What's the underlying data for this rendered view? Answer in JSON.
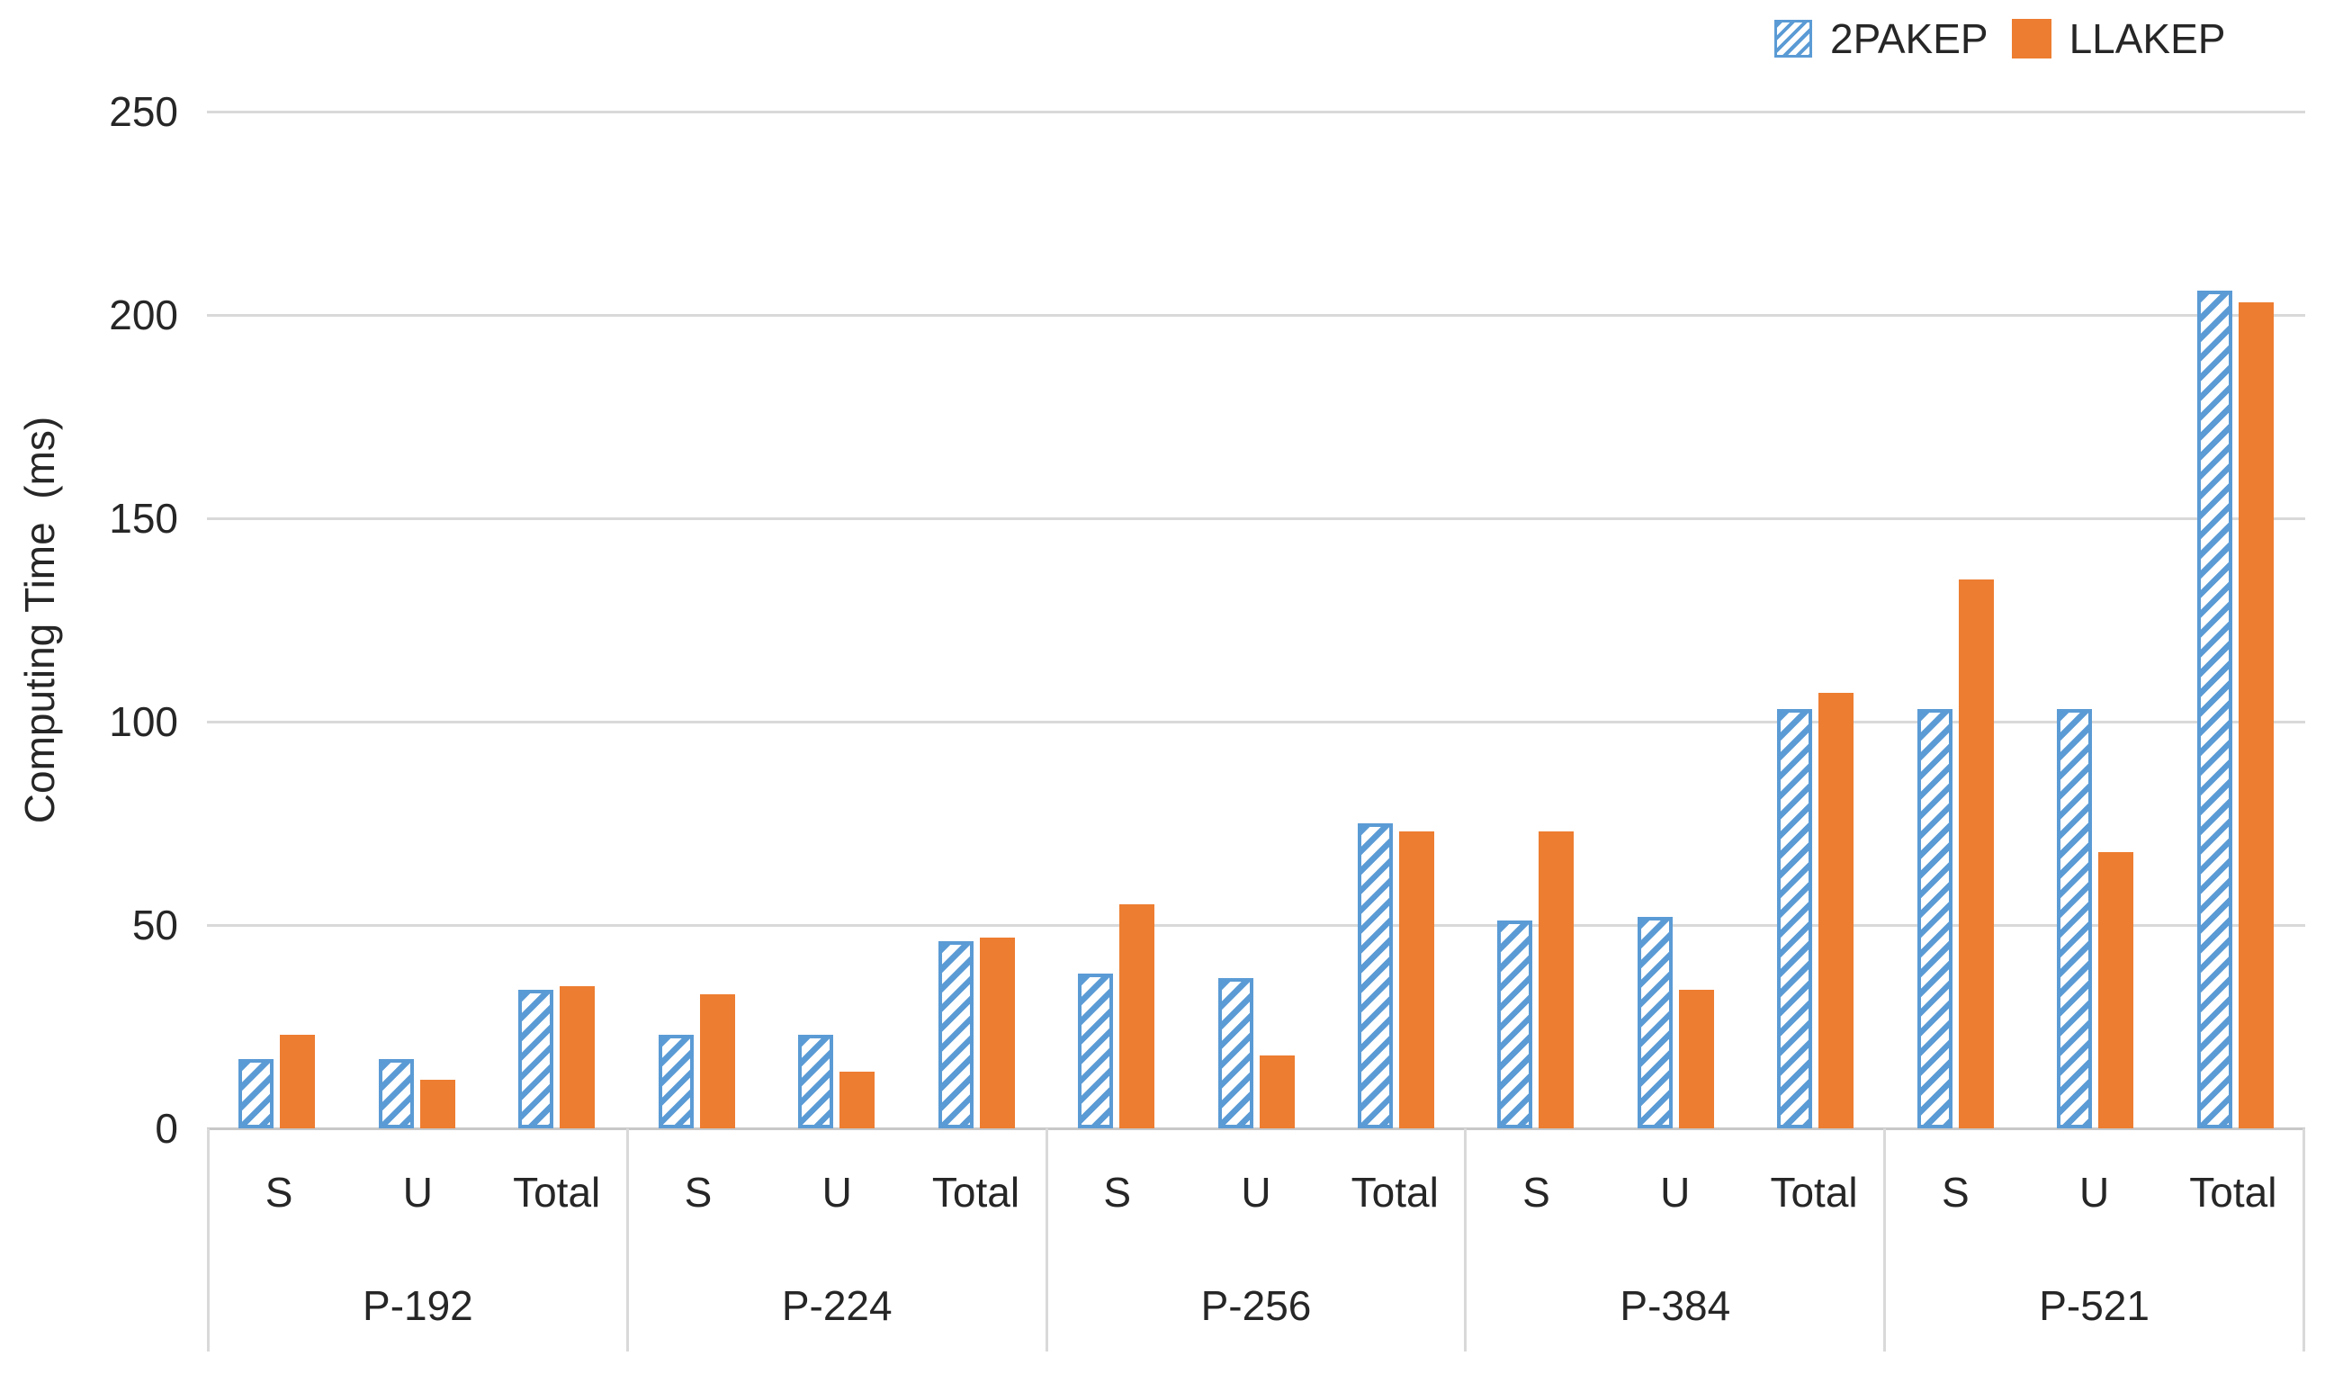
{
  "chart_data": {
    "type": "bar",
    "title": "",
    "ylabel": "Computing Time  (ms)",
    "xlabel": "",
    "ylim": [
      0,
      250
    ],
    "yticks": [
      0,
      50,
      100,
      150,
      200,
      250
    ],
    "grid": true,
    "legend_position": "top-right",
    "groups": [
      "P-192",
      "P-224",
      "P-256",
      "P-384",
      "P-521"
    ],
    "subcategories": [
      "S",
      "U",
      "Total"
    ],
    "series": [
      {
        "name": "2PAKEP",
        "color": "#5B9BD5",
        "pattern": "diagonal-hatch",
        "values": [
          [
            17,
            17,
            34
          ],
          [
            23,
            23,
            46
          ],
          [
            38,
            37,
            75
          ],
          [
            51,
            52,
            103
          ],
          [
            103,
            103,
            206
          ]
        ]
      },
      {
        "name": "LLAKEP",
        "color": "#ED7D31",
        "pattern": "solid",
        "values": [
          [
            23,
            12,
            35
          ],
          [
            33,
            14,
            47
          ],
          [
            55,
            18,
            73
          ],
          [
            73,
            34,
            107
          ],
          [
            135,
            68,
            203
          ]
        ]
      }
    ],
    "colors": {
      "gridline": "#D9D9D9",
      "axis_line": "#C8C8C8",
      "text": "#262626",
      "background": "#FFFFFF"
    }
  }
}
